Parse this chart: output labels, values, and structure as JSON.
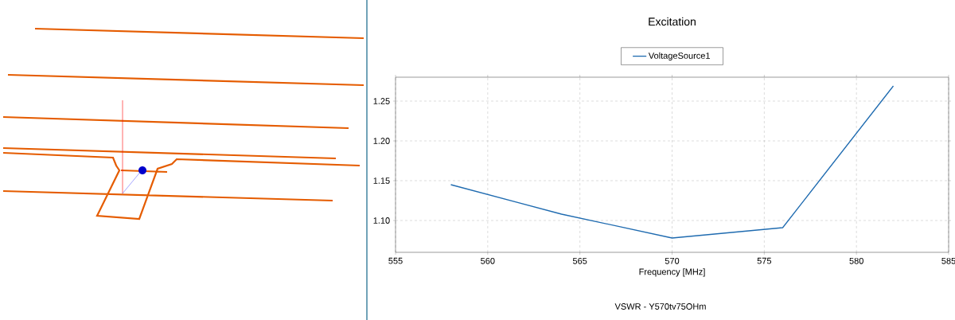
{
  "chart_data": {
    "type": "line",
    "title": "Excitation",
    "xlabel": "Frequency [MHz]",
    "annotations": [
      "VSWR - Y570tv75OHm"
    ],
    "x": [
      558,
      564,
      570,
      576,
      582
    ],
    "series": [
      {
        "name": "VoltageSource1",
        "color": "#1f6bb0",
        "values": [
          1.145,
          1.108,
          1.078,
          1.091,
          1.269
        ]
      }
    ],
    "xlim": [
      555,
      585
    ],
    "xticks": [
      555,
      560,
      565,
      570,
      575,
      580,
      585
    ],
    "ylim": [
      1.06,
      1.28
    ],
    "yticks": [
      {
        "value": 1.1,
        "label": "1.10"
      },
      {
        "value": 1.15,
        "label": "1.15"
      },
      {
        "value": 1.2,
        "label": "1.20"
      },
      {
        "value": 1.25,
        "label": "1.25"
      }
    ],
    "grid": true,
    "legend": "top",
    "marker": "none",
    "line_style": "solid"
  }
}
